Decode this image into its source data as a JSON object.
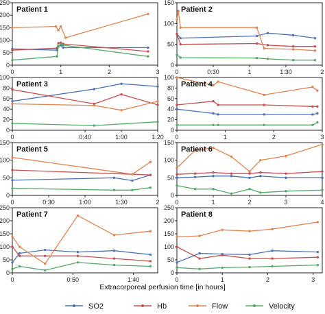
{
  "xlabel": "Extracorporeal perfusion time [in hours]",
  "colors": {
    "SO2": "#4c72b0",
    "Hb": "#c44e52",
    "Flow": "#dd8452",
    "Velocity": "#55a868"
  },
  "legend": [
    "SO2",
    "Hb",
    "Flow",
    "Velocity"
  ],
  "chart_data": [
    {
      "type": "line",
      "title": "Patient 1",
      "xlim": [
        0,
        3
      ],
      "ylim": [
        0,
        250
      ],
      "yticks": [
        0,
        50,
        100,
        150,
        200,
        250
      ],
      "xticks": [
        {
          "v": 0,
          "t": "0"
        },
        {
          "v": 1,
          "t": "1"
        },
        {
          "v": 2,
          "t": "2"
        },
        {
          "v": 3,
          "t": "3"
        }
      ],
      "series": [
        {
          "name": "SO2",
          "x": [
            0,
            0.92,
            0.95,
            1.0,
            1.05,
            2.8
          ],
          "y": [
            65,
            60,
            75,
            80,
            70,
            70
          ]
        },
        {
          "name": "Hb",
          "x": [
            0,
            0.92,
            0.95,
            1.0,
            1.05,
            2.8
          ],
          "y": [
            60,
            68,
            88,
            90,
            85,
            55
          ]
        },
        {
          "name": "Flow",
          "x": [
            0,
            0.9,
            0.95,
            1.0,
            1.1,
            2.8
          ],
          "y": [
            150,
            155,
            140,
            155,
            110,
            205
          ]
        },
        {
          "name": "Velocity",
          "x": [
            0,
            0.92,
            0.95,
            1.0,
            1.05,
            2.8
          ],
          "y": [
            20,
            35,
            75,
            85,
            80,
            35
          ]
        }
      ]
    },
    {
      "type": "line",
      "title": "Patient 2",
      "xlim": [
        0,
        2
      ],
      "ylim": [
        0,
        150
      ],
      "yticks": [
        0,
        50,
        100,
        150
      ],
      "xticks": [
        {
          "v": 0,
          "t": "0"
        },
        {
          "v": 0.5,
          "t": "0:30"
        },
        {
          "v": 1,
          "t": "1"
        },
        {
          "v": 1.5,
          "t": "1:30"
        },
        {
          "v": 2,
          "t": "2"
        }
      ],
      "series": [
        {
          "name": "SO2",
          "x": [
            0,
            0.05,
            1.1,
            1.25,
            1.6,
            1.9
          ],
          "y": [
            75,
            65,
            70,
            77,
            72,
            65
          ]
        },
        {
          "name": "Hb",
          "x": [
            0,
            0.05,
            1.1,
            1.25,
            1.6,
            1.9
          ],
          "y": [
            75,
            50,
            52,
            48,
            45,
            45
          ]
        },
        {
          "name": "Flow",
          "x": [
            0,
            0.02,
            0.05,
            1.1,
            1.2,
            1.6,
            1.9
          ],
          "y": [
            110,
            130,
            90,
            90,
            40,
            38,
            35
          ]
        },
        {
          "name": "Velocity",
          "x": [
            0,
            0.05,
            1.1,
            1.25,
            1.6,
            1.9
          ],
          "y": [
            25,
            18,
            17,
            15,
            12,
            12
          ]
        }
      ]
    },
    {
      "type": "line",
      "title": "Patient 3",
      "xlim": [
        0,
        1.333
      ],
      "ylim": [
        0,
        100
      ],
      "yticks": [
        0,
        20,
        40,
        60,
        80,
        100
      ],
      "xticks": [
        {
          "v": 0,
          "t": "0"
        },
        {
          "v": 0.667,
          "t": "0:40"
        },
        {
          "v": 1,
          "t": "1:00"
        },
        {
          "v": 1.333,
          "t": "1:20"
        }
      ],
      "series": [
        {
          "name": "SO2",
          "x": [
            0,
            0.75,
            1.0,
            1.333
          ],
          "y": [
            55,
            78,
            88,
            83
          ]
        },
        {
          "name": "Hb",
          "x": [
            0,
            0.75,
            1.0,
            1.333
          ],
          "y": [
            77,
            50,
            68,
            48
          ]
        },
        {
          "name": "Flow",
          "x": [
            0,
            0.75,
            1.0,
            1.333
          ],
          "y": [
            50,
            47,
            38,
            55
          ]
        },
        {
          "name": "Velocity",
          "x": [
            0,
            0.75,
            1.333
          ],
          "y": [
            13,
            9,
            16
          ]
        }
      ]
    },
    {
      "type": "line",
      "title": "Patient 4",
      "xlim": [
        0,
        3
      ],
      "ylim": [
        0,
        100
      ],
      "yticks": [
        0,
        20,
        40,
        60,
        80,
        100
      ],
      "xticks": [
        {
          "v": 0,
          "t": "0"
        },
        {
          "v": 1,
          "t": "1"
        },
        {
          "v": 2,
          "t": "2"
        },
        {
          "v": 3,
          "t": "3"
        }
      ],
      "series": [
        {
          "name": "SO2",
          "x": [
            0,
            0.75,
            0.85,
            1.8,
            2.8,
            2.9
          ],
          "y": [
            40,
            32,
            30,
            30,
            30,
            32
          ]
        },
        {
          "name": "Hb",
          "x": [
            0,
            0.75,
            0.85,
            1.8,
            2.8,
            2.9
          ],
          "y": [
            48,
            55,
            48,
            48,
            45,
            45
          ]
        },
        {
          "name": "Flow",
          "x": [
            0,
            0.75,
            0.85,
            1.8,
            2.8,
            2.9
          ],
          "y": [
            100,
            85,
            92,
            67,
            82,
            75
          ]
        },
        {
          "name": "Velocity",
          "x": [
            0,
            0.75,
            0.85,
            1.8,
            2.8,
            2.9
          ],
          "y": [
            10,
            10,
            10,
            10,
            10,
            15
          ]
        }
      ]
    },
    {
      "type": "line",
      "title": "Patient 5",
      "xlim": [
        0,
        2
      ],
      "ylim": [
        0,
        150
      ],
      "yticks": [
        0,
        50,
        100,
        150
      ],
      "xticks": [
        {
          "v": 0,
          "t": "0"
        },
        {
          "v": 0.5,
          "t": "0:30"
        },
        {
          "v": 1,
          "t": "1:00"
        },
        {
          "v": 1.5,
          "t": "1:30"
        },
        {
          "v": 2,
          "t": "2"
        }
      ],
      "series": [
        {
          "name": "SO2",
          "x": [
            0,
            1.4,
            1.65,
            1.9
          ],
          "y": [
            43,
            50,
            42,
            58
          ]
        },
        {
          "name": "Hb",
          "x": [
            0,
            1.65,
            1.9
          ],
          "y": [
            72,
            60,
            58
          ]
        },
        {
          "name": "Flow",
          "x": [
            0,
            1.65,
            1.9
          ],
          "y": [
            108,
            60,
            95
          ]
        },
        {
          "name": "Velocity",
          "x": [
            0,
            1.4,
            1.65,
            1.9
          ],
          "y": [
            20,
            15,
            15,
            22
          ]
        }
      ]
    },
    {
      "type": "line",
      "title": "Patient 6",
      "xlim": [
        0,
        4
      ],
      "ylim": [
        0,
        150
      ],
      "yticks": [
        0,
        50,
        100,
        150
      ],
      "xticks": [
        {
          "v": 0,
          "t": "0"
        },
        {
          "v": 1,
          "t": "1"
        },
        {
          "v": 2,
          "t": "2"
        },
        {
          "v": 3,
          "t": "3"
        },
        {
          "v": 4,
          "t": "4"
        }
      ],
      "series": [
        {
          "name": "SO2",
          "x": [
            0,
            0.5,
            1.0,
            1.5,
            2.0,
            2.3,
            3.0,
            4.0
          ],
          "y": [
            50,
            52,
            55,
            55,
            50,
            55,
            50,
            50
          ]
        },
        {
          "name": "Hb",
          "x": [
            0,
            0.5,
            1.0,
            1.5,
            2.0,
            2.3,
            3.0,
            4.0
          ],
          "y": [
            60,
            62,
            65,
            62,
            62,
            65,
            62,
            68
          ]
        },
        {
          "name": "Flow",
          "x": [
            0,
            0.5,
            1.0,
            1.5,
            2.0,
            2.3,
            3.0,
            4.0
          ],
          "y": [
            78,
            128,
            135,
            110,
            68,
            100,
            112,
            145
          ]
        },
        {
          "name": "Velocity",
          "x": [
            0,
            0.5,
            1.0,
            1.5,
            2.0,
            2.3,
            3.0,
            4.0
          ],
          "y": [
            28,
            18,
            18,
            5,
            18,
            8,
            12,
            15
          ]
        }
      ]
    },
    {
      "type": "line",
      "title": "Patient 7",
      "xlim": [
        0,
        2
      ],
      "ylim": [
        0,
        250
      ],
      "yticks": [
        0,
        50,
        100,
        150,
        200,
        250
      ],
      "xticks": [
        {
          "v": 0,
          "t": "0"
        },
        {
          "v": 0.833,
          "t": "0:50"
        },
        {
          "v": 1.667,
          "t": "1:40"
        }
      ],
      "series": [
        {
          "name": "SO2",
          "x": [
            0,
            0.1,
            0.45,
            0.9,
            1.4,
            1.9
          ],
          "y": [
            40,
            75,
            88,
            80,
            85,
            70
          ]
        },
        {
          "name": "Hb",
          "x": [
            0,
            0.1,
            0.45,
            0.9,
            1.4,
            1.9
          ],
          "y": [
            100,
            65,
            65,
            65,
            55,
            45
          ]
        },
        {
          "name": "Flow",
          "x": [
            0,
            0.1,
            0.45,
            0.9,
            1.4,
            1.9
          ],
          "y": [
            140,
            100,
            35,
            220,
            145,
            160
          ]
        },
        {
          "name": "Velocity",
          "x": [
            0,
            0.1,
            0.45,
            0.9,
            1.4,
            1.9
          ],
          "y": [
            15,
            25,
            10,
            40,
            30,
            25
          ]
        }
      ]
    },
    {
      "type": "line",
      "title": "Patient 8",
      "xlim": [
        0,
        3.2
      ],
      "ylim": [
        0,
        250
      ],
      "yticks": [
        0,
        50,
        100,
        150,
        200,
        250
      ],
      "xticks": [
        {
          "v": 0,
          "t": "0"
        },
        {
          "v": 1,
          "t": "1"
        },
        {
          "v": 2,
          "t": "2"
        },
        {
          "v": 3,
          "t": "3"
        }
      ],
      "series": [
        {
          "name": "SO2",
          "x": [
            0,
            0.5,
            1.0,
            1.6,
            2.1,
            3.1
          ],
          "y": [
            40,
            75,
            72,
            70,
            85,
            80
          ]
        },
        {
          "name": "Hb",
          "x": [
            0,
            0.5,
            1.0,
            1.6,
            2.1,
            3.1
          ],
          "y": [
            100,
            55,
            68,
            55,
            55,
            60
          ]
        },
        {
          "name": "Flow",
          "x": [
            0,
            0.5,
            1.0,
            1.6,
            2.1,
            3.1
          ],
          "y": [
            138,
            142,
            165,
            160,
            168,
            195
          ]
        },
        {
          "name": "Velocity",
          "x": [
            0,
            0.5,
            1.0,
            1.6,
            2.1,
            3.1
          ],
          "y": [
            20,
            15,
            20,
            22,
            25,
            30
          ]
        }
      ]
    }
  ]
}
